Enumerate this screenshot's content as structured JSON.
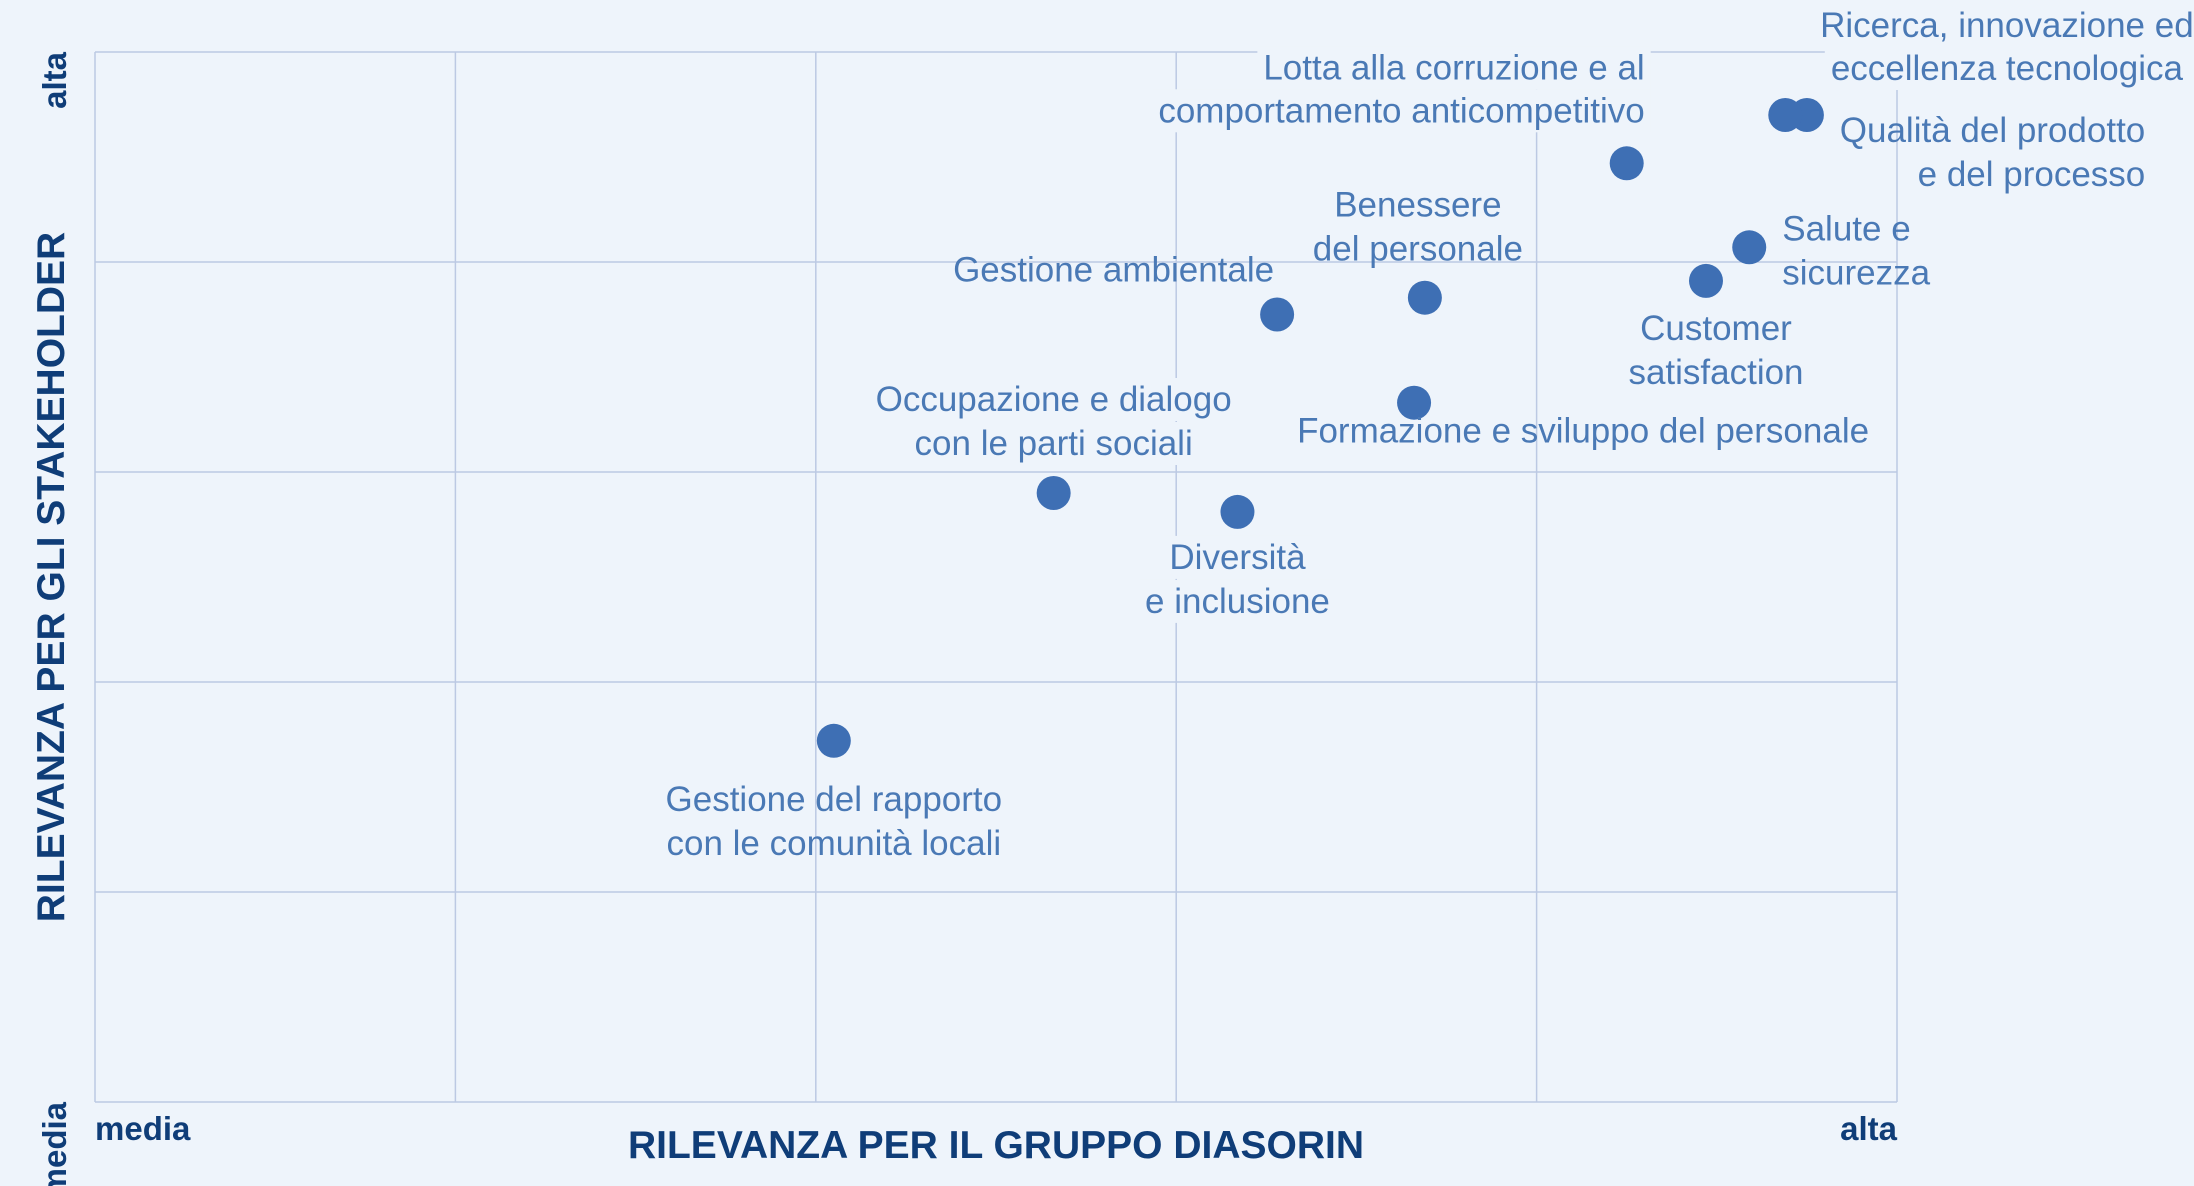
{
  "chart_data": {
    "type": "scatter",
    "title": "",
    "xlabel": "RILEVANZA PER IL GRUPPO DIASORIN",
    "ylabel": "RILEVANZA PER GLI STAKEHOLDER",
    "x_tick_labels": {
      "min": "media",
      "max": "alta"
    },
    "y_tick_labels": {
      "min": "media",
      "max": "alta"
    },
    "xlim": [
      0,
      5
    ],
    "ylim": [
      0,
      5
    ],
    "grid": true,
    "colors": {
      "point": "#3e6fb4",
      "label": "#4a79b5",
      "axis_text": "#0f3d78",
      "grid": "#bcc9e3",
      "background": "#eef4fb"
    },
    "points": [
      {
        "name": "Ricerca, innovazione ed eccellenza tecnologica",
        "lines": [
          "Ricerca, innovazione ed",
          "eccellenza tecnologica"
        ],
        "x": 4.75,
        "y": 4.7
      },
      {
        "name": "Qualità del prodotto e del processo",
        "lines": [
          "Qualità del prodotto",
          "e del processo"
        ],
        "x": 4.69,
        "y": 4.7
      },
      {
        "name": "Lotta alla corruzione e al comportamento anticompetitivo",
        "lines": [
          "Lotta alla corruzione e al",
          "comportamento anticompetitivo"
        ],
        "x": 4.25,
        "y": 4.47
      },
      {
        "name": "Salute e sicurezza",
        "lines": [
          "Salute e",
          "sicurezza"
        ],
        "x": 4.59,
        "y": 4.07
      },
      {
        "name": "Customer satisfaction",
        "lines": [
          "Customer",
          "satisfaction"
        ],
        "x": 4.47,
        "y": 3.91
      },
      {
        "name": "Benessere del personale",
        "lines": [
          "Benessere",
          "del personale"
        ],
        "x": 3.69,
        "y": 3.83
      },
      {
        "name": "Gestione ambientale",
        "lines": [
          "Gestione ambientale"
        ],
        "x": 3.28,
        "y": 3.75
      },
      {
        "name": "Formazione e sviluppo del personale",
        "lines": [
          "Formazione e sviluppo del personale"
        ],
        "x": 3.66,
        "y": 3.33
      },
      {
        "name": "Occupazione e dialogo con le parti sociali",
        "lines": [
          "Occupazione e dialogo",
          "con le parti sociali"
        ],
        "x": 2.66,
        "y": 2.9
      },
      {
        "name": "Diversità e inclusione",
        "lines": [
          "Diversità",
          "e inclusione"
        ],
        "x": 3.17,
        "y": 2.81
      },
      {
        "name": "Gestione del rapporto con le comunità locali",
        "lines": [
          "Gestione del rapporto",
          "con le comunità locali"
        ],
        "x": 2.05,
        "y": 1.72
      }
    ]
  }
}
